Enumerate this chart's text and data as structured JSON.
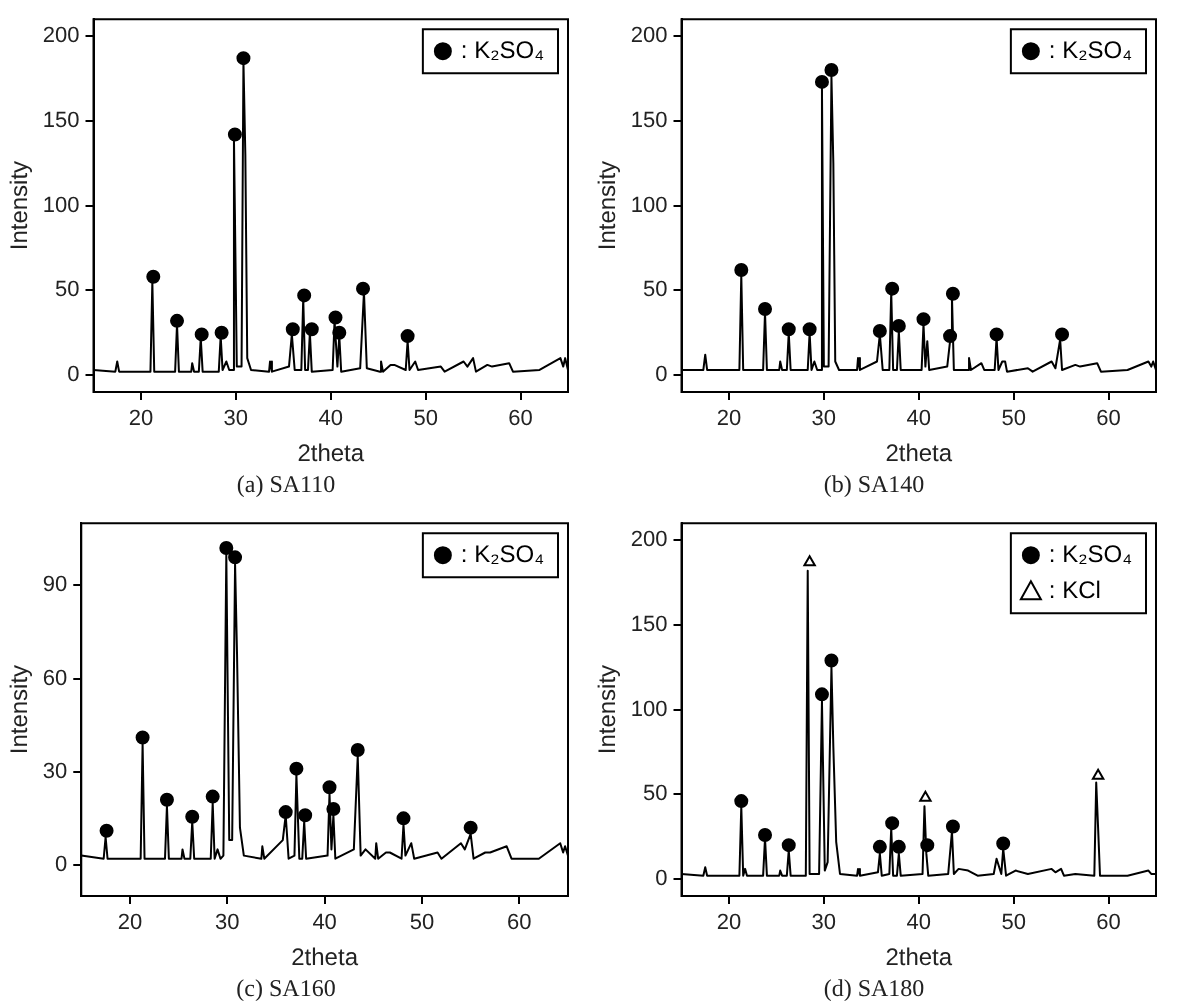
{
  "chart_data": [
    {
      "type": "line",
      "title": "(a) SA110",
      "xlabel": "2theta",
      "ylabel": "Intensity",
      "xlim": [
        15,
        65
      ],
      "xticks": [
        20,
        30,
        40,
        50,
        60
      ],
      "ylim": [
        -10,
        210
      ],
      "yticks": [
        0,
        50,
        100,
        150,
        200
      ],
      "grid": false,
      "legend": "top right",
      "series": [
        {
          "color": "#000000",
          "marker": "none",
          "x": [
            15,
            17.3,
            17.5,
            17.7,
            21.0,
            21.2,
            21.4,
            23.6,
            23.8,
            24.0,
            25.3,
            25.4,
            25.6,
            26.1,
            26.3,
            26.5,
            28.2,
            28.4,
            28.6,
            29.0,
            29.3,
            29.6,
            29.8,
            30.1,
            30.6,
            30.8,
            31.0,
            31.2,
            31.6,
            33.5,
            33.6,
            33.8,
            35.6,
            35.9,
            36.2,
            36.9,
            37.1,
            37.3,
            37.6,
            37.8,
            38.0,
            40.2,
            40.4,
            40.7,
            40.9,
            41.1,
            43.1,
            43.5,
            43.8,
            45.2,
            45.3,
            45.5,
            46.3,
            46.7,
            47.9,
            48.1,
            48.3,
            48.9,
            49.2,
            51.6,
            52,
            54,
            54.4,
            55,
            55.3,
            56.5,
            57,
            58.8,
            59.2,
            62,
            64.2,
            64.5,
            64.7,
            65
          ],
          "values": [
            3,
            2,
            8,
            2,
            2,
            55,
            2,
            2,
            30,
            2,
            2,
            7,
            2,
            2,
            22,
            2,
            2,
            23,
            3,
            8,
            3,
            3,
            140,
            5,
            5,
            185,
            130,
            10,
            3,
            2,
            8,
            2,
            5,
            24,
            3,
            3,
            45,
            3,
            3,
            25,
            2,
            3,
            32,
            5,
            23,
            2,
            4,
            49,
            4,
            2,
            8,
            2,
            6,
            6,
            3,
            20,
            3,
            8,
            3,
            5,
            2,
            8,
            5,
            10,
            2,
            6,
            5,
            7,
            2,
            3,
            10,
            5,
            10,
            3
          ]
        },
        {
          "type": "scatter",
          "name": ": K₂SO₄",
          "color": "#000000",
          "marker": "circle",
          "x": [
            21.3,
            23.8,
            26.4,
            28.5,
            29.9,
            30.8,
            36.0,
            37.2,
            38.0,
            40.5,
            40.9,
            43.4,
            48.1
          ],
          "values": [
            58,
            32,
            24,
            25,
            142,
            187,
            27,
            47,
            27,
            34,
            25,
            51,
            23
          ]
        }
      ]
    },
    {
      "type": "line",
      "title": "(b) SA140",
      "xlabel": "2theta",
      "ylabel": "Intensity",
      "xlim": [
        15,
        65
      ],
      "xticks": [
        20,
        30,
        40,
        50,
        60
      ],
      "ylim": [
        -10,
        210
      ],
      "yticks": [
        0,
        50,
        100,
        150,
        200
      ],
      "grid": false,
      "legend": "top right",
      "series": [
        {
          "color": "#000000",
          "marker": "none",
          "x": [
            15,
            17.3,
            17.5,
            17.7,
            21.1,
            21.3,
            21.5,
            23.6,
            23.8,
            24.0,
            25.3,
            25.4,
            25.6,
            26.1,
            26.3,
            26.5,
            28.3,
            28.5,
            28.7,
            29.0,
            29.3,
            29.6,
            29.8,
            30.0,
            30.5,
            30.8,
            31.0,
            31.2,
            31.6,
            33.5,
            33.6,
            33.8,
            34.5,
            35.6,
            35.9,
            36.2,
            36.9,
            37.1,
            37.3,
            37.7,
            37.9,
            38.1,
            40.3,
            40.5,
            40.7,
            40.9,
            41.1,
            43.0,
            43.3,
            43.5,
            43.7,
            45.2,
            45.3,
            45.5,
            46.6,
            46.9,
            48.0,
            48.2,
            48.4,
            48.8,
            49.1,
            49.3,
            51.5,
            52,
            54,
            54.4,
            54.9,
            55.1,
            56.5,
            57,
            58.8,
            59.2,
            62,
            64.2,
            64.5,
            64.7,
            65
          ],
          "values": [
            3,
            3,
            12,
            3,
            3,
            59,
            3,
            3,
            37,
            3,
            3,
            8,
            3,
            3,
            25,
            3,
            3,
            25,
            3,
            8,
            3,
            3,
            170,
            5,
            5,
            176,
            125,
            8,
            3,
            3,
            10,
            3,
            5,
            8,
            24,
            3,
            3,
            49,
            3,
            3,
            26,
            3,
            3,
            30,
            5,
            20,
            3,
            5,
            20,
            46,
            3,
            3,
            10,
            3,
            7,
            3,
            3,
            22,
            3,
            8,
            8,
            2,
            4,
            2,
            8,
            4,
            21,
            3,
            6,
            5,
            7,
            2,
            3,
            8,
            5,
            8,
            3
          ]
        },
        {
          "type": "scatter",
          "name": ": K₂SO₄",
          "color": "#000000",
          "marker": "circle",
          "x": [
            21.3,
            23.8,
            26.3,
            28.5,
            29.8,
            30.8,
            35.9,
            37.2,
            37.9,
            40.5,
            43.3,
            43.6,
            48.2,
            55.1
          ],
          "values": [
            62,
            39,
            27,
            27,
            173,
            180,
            26,
            51,
            29,
            33,
            23,
            48,
            24,
            24
          ]
        }
      ]
    },
    {
      "type": "line",
      "title": "(c) SA160",
      "xlabel": "2theta",
      "ylabel": "Intensity",
      "xlim": [
        15,
        65
      ],
      "xticks": [
        20,
        30,
        40,
        50,
        60
      ],
      "ylim": [
        -10,
        110
      ],
      "yticks": [
        0,
        30,
        60,
        90
      ],
      "grid": false,
      "legend": "top right",
      "series": [
        {
          "color": "#000000",
          "marker": "none",
          "x": [
            15,
            17.3,
            17.5,
            17.7,
            21.1,
            21.3,
            21.5,
            23.6,
            23.8,
            24.0,
            25.3,
            25.4,
            25.6,
            26.2,
            26.4,
            26.6,
            28.3,
            28.5,
            28.7,
            29.0,
            29.3,
            29.6,
            29.9,
            30.2,
            30.5,
            30.8,
            31.0,
            31.3,
            31.7,
            33.5,
            33.6,
            33.8,
            35.7,
            36.0,
            36.3,
            36.9,
            37.1,
            37.4,
            37.7,
            37.9,
            38.1,
            40.3,
            40.5,
            40.7,
            40.9,
            41.1,
            43.0,
            43.4,
            43.7,
            44.2,
            45.2,
            45.3,
            45.5,
            46.3,
            46.7,
            47.9,
            48.1,
            48.3,
            48.9,
            49.2,
            51.6,
            52,
            54,
            54.4,
            55,
            55.3,
            56.5,
            57,
            58.7,
            59.2,
            62,
            64.2,
            64.5,
            64.7,
            65
          ],
          "values": [
            3,
            2,
            9,
            2,
            2,
            39,
            2,
            2,
            19,
            2,
            2,
            5,
            2,
            2,
            14,
            2,
            2,
            20,
            2,
            5,
            2,
            3,
            100,
            8,
            8,
            97,
            68,
            12,
            3,
            2,
            6,
            2,
            8,
            16,
            2,
            3,
            29,
            2,
            2,
            14,
            2,
            3,
            23,
            5,
            16,
            2,
            5,
            35,
            3,
            5,
            2,
            7,
            2,
            4,
            4,
            2,
            13,
            3,
            7,
            2,
            4,
            2,
            7,
            5,
            10,
            2,
            4,
            4,
            6,
            2,
            2,
            7,
            4,
            6,
            3
          ]
        },
        {
          "type": "scatter",
          "name": ": K₂SO₄",
          "color": "#000000",
          "marker": "circle",
          "x": [
            17.6,
            21.3,
            23.8,
            26.4,
            28.5,
            29.9,
            30.8,
            36.0,
            37.1,
            38.0,
            40.5,
            40.9,
            43.4,
            48.1,
            55.0
          ],
          "values": [
            11,
            41,
            21,
            15.5,
            22,
            102,
            99,
            17,
            31,
            16,
            25,
            18,
            37,
            15,
            12
          ]
        }
      ]
    },
    {
      "type": "line",
      "title": "(d) SA180",
      "xlabel": "2theta",
      "ylabel": "Intensity",
      "xlim": [
        15,
        65
      ],
      "xticks": [
        20,
        30,
        40,
        50,
        60
      ],
      "ylim": [
        -10,
        210
      ],
      "yticks": [
        0,
        50,
        100,
        150,
        200
      ],
      "grid": false,
      "legend": "top right",
      "series": [
        {
          "color": "#000000",
          "marker": "none",
          "x": [
            15,
            17.3,
            17.5,
            17.7,
            21.1,
            21.3,
            21.5,
            21.7,
            21.9,
            23.6,
            23.8,
            24.0,
            25.3,
            25.4,
            25.6,
            26.1,
            26.3,
            26.5,
            28.1,
            28.3,
            28.5,
            29.5,
            29.8,
            30.1,
            30.4,
            30.8,
            31.0,
            31.3,
            31.7,
            33.5,
            33.6,
            33.8,
            35.7,
            35.9,
            36.1,
            36.9,
            37.1,
            37.3,
            37.7,
            37.9,
            38.1,
            40.4,
            40.6,
            40.8,
            41.0,
            43.1,
            43.5,
            43.7,
            44.2,
            45.2,
            46.2,
            47.9,
            48.2,
            48.7,
            48.9,
            49.2,
            50.2,
            51.5,
            54,
            54.4,
            55,
            55.3,
            56.5,
            58.5,
            58.7,
            58.9,
            59.1,
            62,
            64.2,
            64.5,
            65
          ],
          "values": [
            3,
            2,
            7,
            2,
            2,
            43,
            2,
            6,
            2,
            2,
            24,
            2,
            2,
            5,
            2,
            2,
            17,
            2,
            2,
            182,
            3,
            3,
            105,
            5,
            10,
            125,
            78,
            22,
            3,
            2,
            6,
            2,
            4,
            15,
            2,
            3,
            30,
            2,
            2,
            15,
            2,
            3,
            43,
            15,
            2,
            3,
            28,
            3,
            6,
            5,
            2,
            3,
            12,
            3,
            18,
            2,
            5,
            3,
            6,
            4,
            6,
            2,
            3,
            2,
            57,
            30,
            2,
            2,
            5,
            3,
            3
          ]
        },
        {
          "type": "scatter",
          "name": ": K₂SO₄",
          "color": "#000000",
          "marker": "circle",
          "x": [
            21.3,
            23.8,
            26.3,
            29.8,
            30.8,
            35.9,
            37.2,
            37.9,
            40.9,
            43.6,
            48.9
          ],
          "values": [
            46,
            26,
            20,
            109,
            129,
            19,
            33,
            19,
            20,
            31,
            21
          ]
        },
        {
          "type": "scatter",
          "name": ": KCl",
          "color": "#000000",
          "marker": "triangle",
          "x": [
            28.5,
            40.7,
            58.9
          ],
          "values": [
            187,
            48,
            61
          ]
        }
      ]
    }
  ]
}
